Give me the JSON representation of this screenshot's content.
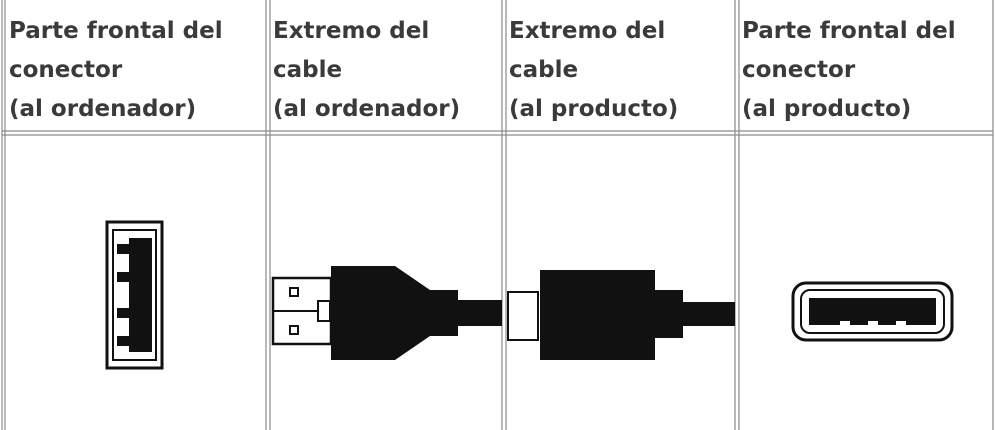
{
  "table": {
    "header": [
      {
        "lines": [
          "Parte frontal del",
          "conector",
          "(al ordenador)"
        ]
      },
      {
        "lines": [
          "Extremo del",
          "cable",
          "(al ordenador)"
        ]
      },
      {
        "lines": [
          "Extremo del",
          "cable",
          "(al producto)"
        ]
      },
      {
        "lines": [
          "Parte frontal del",
          "conector",
          "(al producto)"
        ]
      }
    ]
  }
}
